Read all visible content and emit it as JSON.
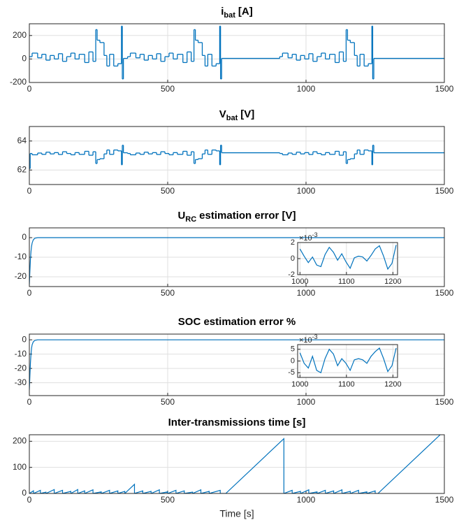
{
  "chart_data": [
    {
      "type": "line",
      "title": "i",
      "title_sub": "bat",
      "title_suffix": "[A]",
      "step": true,
      "color": "#0072bd",
      "grid": true,
      "xlim": [
        0,
        1500
      ],
      "xticks": [
        0,
        500,
        1000,
        1500
      ],
      "ylim": [
        -200,
        300
      ],
      "yticks": [
        -200,
        0,
        200
      ],
      "x": [
        0,
        10,
        30,
        45,
        60,
        75,
        90,
        105,
        120,
        135,
        150,
        165,
        180,
        200,
        215,
        230,
        240,
        245,
        255,
        270,
        280,
        290,
        305,
        320,
        333,
        336,
        340,
        355,
        365,
        385,
        400,
        415,
        430,
        445,
        460,
        475,
        490,
        505,
        520,
        535,
        555,
        570,
        585,
        595,
        600,
        610,
        625,
        635,
        645,
        660,
        675,
        688,
        691,
        695,
        905,
        915,
        935,
        950,
        965,
        980,
        995,
        1010,
        1025,
        1040,
        1055,
        1070,
        1085,
        1105,
        1120,
        1135,
        1145,
        1150,
        1160,
        1175,
        1185,
        1195,
        1210,
        1225,
        1238,
        1241,
        1245,
        1500
      ],
      "values": [
        20,
        50,
        10,
        40,
        -10,
        30,
        0,
        45,
        -20,
        20,
        50,
        0,
        40,
        -30,
        60,
        -20,
        250,
        160,
        140,
        30,
        -60,
        40,
        -60,
        -40,
        280,
        -170,
        5,
        20,
        50,
        10,
        40,
        -10,
        30,
        0,
        45,
        -20,
        20,
        50,
        0,
        40,
        -30,
        60,
        -20,
        250,
        160,
        140,
        30,
        -60,
        40,
        -60,
        -40,
        280,
        -170,
        5,
        20,
        50,
        10,
        40,
        -10,
        30,
        0,
        45,
        -20,
        20,
        50,
        0,
        40,
        -30,
        60,
        -20,
        250,
        160,
        140,
        30,
        -60,
        40,
        -60,
        -40,
        280,
        -170,
        5,
        5
      ]
    },
    {
      "type": "line",
      "title": "V",
      "title_sub": "bat",
      "title_suffix": "[V]",
      "step": true,
      "color": "#0072bd",
      "grid": true,
      "xlim": [
        0,
        1500
      ],
      "xticks": [
        0,
        500,
        1000,
        1500
      ],
      "ylim": [
        61,
        65
      ],
      "yticks": [
        62,
        64
      ],
      "x": [
        0,
        3,
        10,
        30,
        45,
        60,
        75,
        90,
        105,
        120,
        135,
        150,
        165,
        180,
        200,
        215,
        230,
        240,
        245,
        255,
        270,
        280,
        290,
        305,
        320,
        333,
        336,
        340,
        355,
        365,
        385,
        400,
        415,
        430,
        445,
        460,
        475,
        490,
        505,
        520,
        535,
        555,
        570,
        585,
        595,
        600,
        610,
        625,
        635,
        645,
        660,
        675,
        688,
        691,
        695,
        905,
        915,
        935,
        950,
        965,
        980,
        995,
        1010,
        1025,
        1040,
        1055,
        1070,
        1085,
        1105,
        1120,
        1135,
        1145,
        1150,
        1160,
        1175,
        1185,
        1195,
        1210,
        1225,
        1238,
        1241,
        1245,
        1500
      ],
      "values": [
        62.1,
        63.14,
        63.05,
        63.17,
        63.08,
        63.23,
        63.11,
        63.2,
        63.07,
        63.26,
        63.14,
        63.05,
        63.2,
        63.08,
        63.29,
        63.02,
        63.26,
        62.45,
        62.72,
        62.78,
        63.11,
        63.38,
        63.08,
        63.38,
        63.32,
        62.36,
        63.71,
        63.19,
        63.14,
        63.05,
        63.17,
        63.08,
        63.23,
        63.11,
        63.2,
        63.07,
        63.26,
        63.14,
        63.05,
        63.2,
        63.08,
        63.29,
        63.02,
        63.26,
        62.45,
        62.72,
        62.78,
        63.11,
        63.38,
        63.08,
        63.38,
        63.32,
        62.36,
        63.71,
        63.19,
        63.14,
        63.05,
        63.17,
        63.08,
        63.23,
        63.11,
        63.2,
        63.07,
        63.26,
        63.14,
        63.05,
        63.2,
        63.08,
        63.29,
        63.02,
        63.26,
        62.45,
        62.72,
        62.78,
        63.11,
        63.38,
        63.08,
        63.38,
        63.32,
        62.36,
        63.71,
        63.19,
        63.19
      ]
    },
    {
      "type": "line",
      "title": "U",
      "title_sub": "RC",
      "title_suffix": "estimation error [V]",
      "color": "#0072bd",
      "grid": true,
      "xlim": [
        0,
        1500
      ],
      "xticks": [
        0,
        500,
        1000,
        1500
      ],
      "ylim": [
        -25,
        5
      ],
      "yticks": [
        -20,
        -10,
        0
      ],
      "x": [
        0,
        2,
        4,
        6,
        8,
        10,
        14,
        20,
        30,
        1500
      ],
      "values": [
        -24,
        -17,
        -11,
        -7,
        -4.5,
        -2.8,
        -1.2,
        -0.3,
        0,
        0
      ],
      "inset": {
        "xlim": [
          995,
          1210
        ],
        "xticks": [
          1000,
          1100,
          1200
        ],
        "ylim": [
          -2,
          2
        ],
        "yticks": [
          -2,
          0,
          2
        ],
        "exponent_base": "×10",
        "exponent": "-3",
        "x": [
          1000,
          1009,
          1018,
          1027,
          1036,
          1045,
          1054,
          1063,
          1072,
          1081,
          1090,
          1099,
          1108,
          1117,
          1126,
          1135,
          1144,
          1153,
          1162,
          1171,
          1180,
          1189,
          1198,
          1207
        ],
        "values": [
          1.2,
          0.3,
          -0.5,
          0.2,
          -0.8,
          -1.0,
          0.5,
          1.4,
          0.8,
          -0.2,
          0.6,
          -0.4,
          -1.2,
          0.1,
          0.3,
          0.2,
          -0.3,
          0.4,
          1.2,
          1.6,
          0.3,
          -1.3,
          -0.6,
          1.7
        ]
      }
    },
    {
      "type": "line",
      "title": "SOC estimation error %",
      "color": "#0072bd",
      "grid": true,
      "xlim": [
        0,
        1500
      ],
      "xticks": [
        0,
        500,
        1000,
        1500
      ],
      "ylim": [
        -39,
        4
      ],
      "yticks": [
        -30,
        -20,
        -10,
        0
      ],
      "x": [
        0,
        2,
        4,
        6,
        8,
        10,
        14,
        20,
        30,
        1500
      ],
      "values": [
        -35,
        -25,
        -16,
        -10,
        -6,
        -3.5,
        -1.5,
        -0.4,
        0,
        0
      ],
      "inset": {
        "xlim": [
          995,
          1210
        ],
        "xticks": [
          1000,
          1100,
          1200
        ],
        "ylim": [
          -7,
          7
        ],
        "yticks": [
          -5,
          0,
          5
        ],
        "exponent_base": "×10",
        "exponent": "-3",
        "x": [
          1000,
          1009,
          1018,
          1027,
          1036,
          1045,
          1054,
          1063,
          1072,
          1081,
          1090,
          1099,
          1108,
          1117,
          1126,
          1135,
          1144,
          1153,
          1162,
          1171,
          1180,
          1189,
          1198,
          1207
        ],
        "values": [
          3.5,
          -1,
          -3,
          2,
          -4,
          -5,
          1,
          5,
          3,
          -2,
          1,
          -1,
          -4,
          0.5,
          1,
          0.5,
          -1,
          2,
          4,
          5.5,
          1,
          -4.5,
          -2,
          5.5
        ]
      }
    },
    {
      "type": "line",
      "title": "Inter-transmissions time [s]",
      "xlabel": "Time [s]",
      "color": "#0072bd",
      "grid": true,
      "xlim": [
        0,
        1500
      ],
      "xticks": [
        0,
        500,
        1000,
        1500
      ],
      "ylim": [
        0,
        225
      ],
      "yticks": [
        0,
        100,
        200
      ],
      "x": [
        0,
        15,
        15,
        40,
        40,
        60,
        60,
        90,
        90,
        120,
        120,
        150,
        150,
        175,
        175,
        200,
        200,
        230,
        230,
        260,
        260,
        290,
        290,
        320,
        320,
        345,
        345,
        380,
        380,
        410,
        410,
        440,
        440,
        470,
        470,
        500,
        500,
        530,
        530,
        560,
        560,
        590,
        590,
        620,
        620,
        650,
        650,
        690,
        690,
        710,
        920,
        920,
        950,
        950,
        980,
        980,
        1010,
        1010,
        1040,
        1040,
        1070,
        1070,
        1100,
        1100,
        1130,
        1130,
        1160,
        1160,
        1190,
        1190,
        1220,
        1220,
        1250,
        1250,
        1260,
        1485
      ],
      "values": [
        0,
        10,
        0,
        12,
        0,
        5,
        0,
        15,
        0,
        12,
        0,
        8,
        0,
        15,
        0,
        10,
        0,
        14,
        0,
        6,
        0,
        12,
        0,
        10,
        0,
        8,
        0,
        35,
        0,
        10,
        0,
        8,
        0,
        14,
        0,
        6,
        0,
        12,
        0,
        10,
        0,
        5,
        0,
        14,
        0,
        8,
        0,
        12,
        0,
        0,
        210,
        0,
        12,
        0,
        8,
        0,
        14,
        0,
        6,
        0,
        12,
        0,
        10,
        0,
        14,
        0,
        8,
        0,
        12,
        0,
        6,
        0,
        10,
        0,
        0,
        225
      ]
    }
  ]
}
